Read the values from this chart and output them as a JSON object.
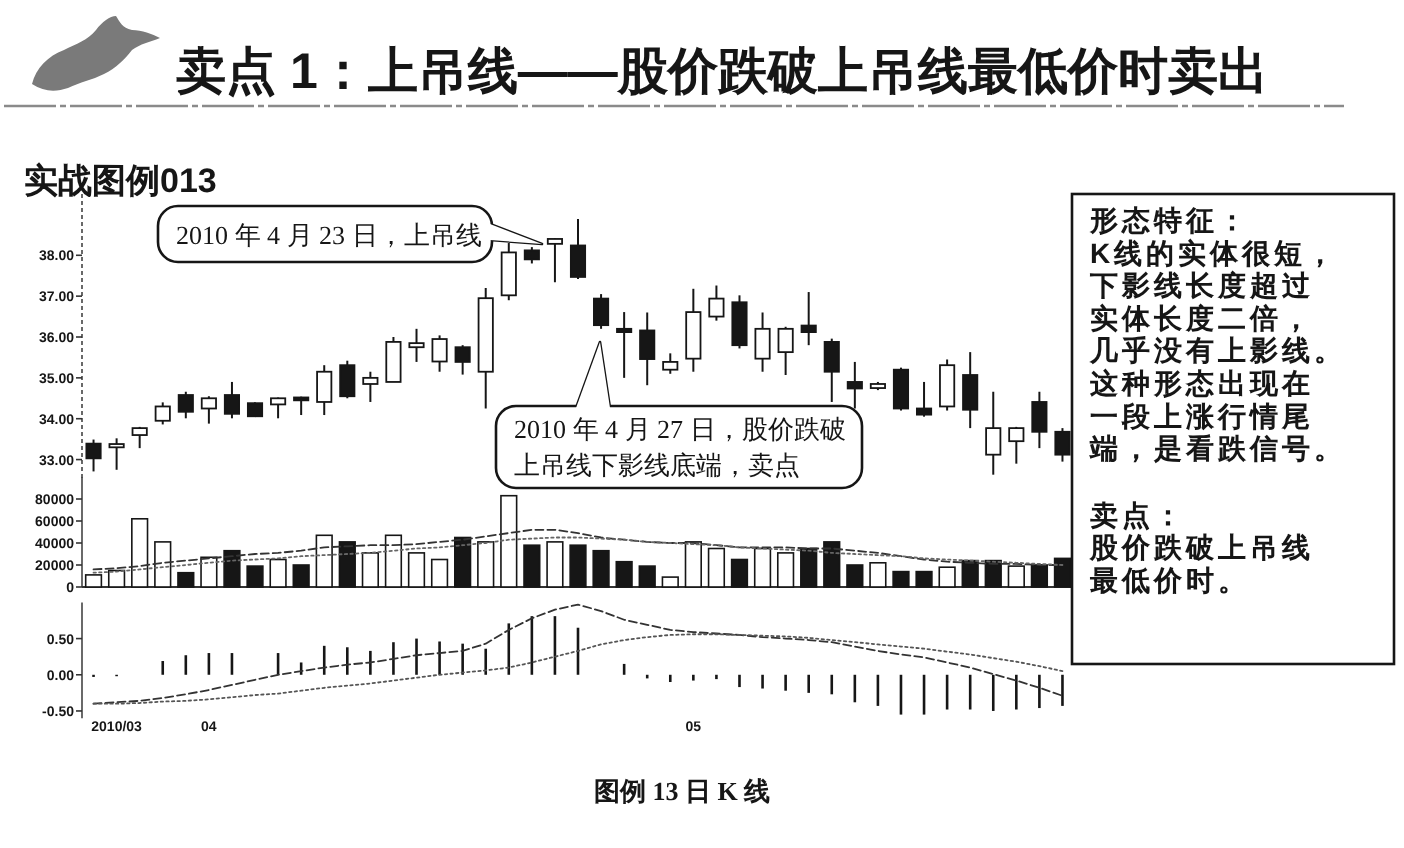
{
  "chart_data": [
    {
      "type": "candlestick",
      "title": "卖点 1：上吊线——股价跌破上吊线最低价时卖出",
      "subtitle": "实战图例013",
      "categories": [
        null,
        null,
        null,
        null,
        null,
        null,
        null,
        null,
        null,
        null,
        null,
        null,
        null,
        null,
        null,
        null,
        null,
        null,
        null,
        null,
        null,
        null,
        null,
        null,
        null,
        null,
        null,
        null,
        null,
        null,
        null,
        null,
        null,
        null,
        null,
        null,
        null,
        null,
        null,
        null,
        null,
        null,
        null
      ],
      "ohlc": [
        [
          33.39,
          33.49,
          32.71,
          33.03
        ],
        [
          33.3,
          33.52,
          32.75,
          33.38
        ],
        [
          33.6,
          33.8,
          33.28,
          33.77
        ],
        [
          33.95,
          34.4,
          33.86,
          34.3
        ],
        [
          34.58,
          34.66,
          34.01,
          34.17
        ],
        [
          34.25,
          34.55,
          33.88,
          34.5
        ],
        [
          34.58,
          34.9,
          34.01,
          34.12
        ],
        [
          34.38,
          34.4,
          34.04,
          34.06
        ],
        [
          34.35,
          34.52,
          34.01,
          34.5
        ],
        [
          34.52,
          34.54,
          34.09,
          34.45
        ],
        [
          34.41,
          35.31,
          34.09,
          35.15
        ],
        [
          35.31,
          35.42,
          34.5,
          34.55
        ],
        [
          34.85,
          35.15,
          34.41,
          35.0
        ],
        [
          34.9,
          36.0,
          34.9,
          35.88
        ],
        [
          35.75,
          36.2,
          35.39,
          35.85
        ],
        [
          35.4,
          36.04,
          35.15,
          35.95
        ],
        [
          35.75,
          35.8,
          35.08,
          35.39
        ],
        [
          35.15,
          37.2,
          34.25,
          36.95
        ],
        [
          37.02,
          38.3,
          36.9,
          38.07
        ],
        [
          38.12,
          38.2,
          37.8,
          37.9
        ],
        [
          38.28,
          38.42,
          37.34,
          38.4
        ],
        [
          38.24,
          38.89,
          37.42,
          37.47
        ],
        [
          36.94,
          37.05,
          36.2,
          36.29
        ],
        [
          36.2,
          36.61,
          35.0,
          36.12
        ],
        [
          36.16,
          36.6,
          34.82,
          35.46
        ],
        [
          35.2,
          35.6,
          35.1,
          35.39
        ],
        [
          35.47,
          37.18,
          35.15,
          36.61
        ],
        [
          36.5,
          37.26,
          36.4,
          36.94
        ],
        [
          36.85,
          37.02,
          35.72,
          35.8
        ],
        [
          35.47,
          36.6,
          35.15,
          36.2
        ],
        [
          35.63,
          36.25,
          35.07,
          36.2
        ],
        [
          36.28,
          37.1,
          35.8,
          36.12
        ],
        [
          35.88,
          35.96,
          34.41,
          35.15
        ],
        [
          34.9,
          35.39,
          34.25,
          34.74
        ],
        [
          34.75,
          34.9,
          34.7,
          34.85
        ],
        [
          35.2,
          35.25,
          34.2,
          34.25
        ],
        [
          34.25,
          34.9,
          34.05,
          34.1
        ],
        [
          34.3,
          35.45,
          34.2,
          35.31
        ],
        [
          35.07,
          35.63,
          33.77,
          34.22
        ],
        [
          33.12,
          34.66,
          32.63,
          33.77
        ],
        [
          33.45,
          33.8,
          32.9,
          33.77
        ],
        [
          34.41,
          34.66,
          33.28,
          33.68
        ],
        [
          33.68,
          33.77,
          32.95,
          33.12
        ]
      ],
      "ylim": [
        32.5,
        39.5
      ],
      "yticks": [
        {
          "value": 33,
          "label": "33.00"
        },
        {
          "value": 34,
          "label": "34.00"
        },
        {
          "value": 35,
          "label": "35.00"
        },
        {
          "value": 36,
          "label": "36.00"
        },
        {
          "value": 37,
          "label": "37.00"
        },
        {
          "value": 38,
          "label": "38.00"
        }
      ],
      "tick_labels": "y",
      "annotations": [
        "2010 年 4 月 23 日，上吊线",
        "2010 年 4 月 27 日，股价跌破上吊线下影线底端，卖点",
        "图例 13  日 K 线"
      ]
    },
    {
      "type": "bar",
      "categories": [
        null,
        null,
        null,
        null,
        null,
        null,
        null,
        null,
        null,
        null,
        null,
        null,
        null,
        null,
        null,
        null,
        null,
        null,
        null,
        null,
        null,
        null,
        null,
        null,
        null,
        null,
        null,
        null,
        null,
        null,
        null,
        null,
        null,
        null,
        null,
        null,
        null,
        null,
        null,
        null,
        null,
        null,
        null
      ],
      "series": [
        {
          "type": "bar",
          "values": [
            11000,
            15000,
            62000,
            41000,
            13000,
            27000,
            33000,
            19000,
            25000,
            20000,
            47000,
            41000,
            31000,
            47000,
            31000,
            25000,
            45000,
            41000,
            83000,
            38000,
            41000,
            38000,
            33000,
            23000,
            19000,
            9000,
            41000,
            35000,
            25000,
            35000,
            31000,
            35000,
            41000,
            20000,
            22000,
            14000,
            14000,
            18000,
            24000,
            24000,
            19000,
            20000,
            26000
          ],
          "colors": [
            "#ffffff",
            "#ffffff",
            "#ffffff",
            "#ffffff",
            "#161616",
            "#ffffff",
            "#161616",
            "#161616",
            "#ffffff",
            "#161616",
            "#ffffff",
            "#161616",
            "#ffffff",
            "#ffffff",
            "#ffffff",
            "#ffffff",
            "#161616",
            "#ffffff",
            "#ffffff",
            "#161616",
            "#ffffff",
            "#161616",
            "#161616",
            "#161616",
            "#161616",
            "#ffffff",
            "#ffffff",
            "#ffffff",
            "#161616",
            "#ffffff",
            "#ffffff",
            "#161616",
            "#161616",
            "#161616",
            "#ffffff",
            "#161616",
            "#161616",
            "#ffffff",
            "#161616",
            "#161616",
            "#ffffff",
            "#161616",
            "#161616"
          ]
        },
        {
          "type": "line",
          "color": "#333333",
          "line_style": "dashed",
          "values": [
            16000,
            17000,
            19000,
            22000,
            24000,
            26000,
            28000,
            30000,
            31000,
            33000,
            36000,
            37000,
            38000,
            38000,
            39000,
            41000,
            43000,
            46000,
            49000,
            52000,
            52000,
            49000,
            45000,
            43000,
            41000,
            40000,
            40000,
            38000,
            36000,
            36000,
            36000,
            35000,
            35000,
            33000,
            31000,
            28000,
            25000,
            23000,
            22000,
            21000,
            21000,
            20000,
            20000
          ]
        },
        {
          "type": "line",
          "color": "#666666",
          "line_style": "dotted",
          "values": [
            13000,
            14000,
            16000,
            18000,
            20000,
            22000,
            24000,
            25000,
            26000,
            28000,
            29000,
            30000,
            31000,
            33000,
            35000,
            36000,
            38000,
            40000,
            43000,
            44000,
            45000,
            45000,
            44000,
            43000,
            41000,
            40000,
            39000,
            38000,
            36000,
            35000,
            34000,
            33000,
            31000,
            30000,
            29000,
            28000,
            26000,
            25000,
            24000,
            23000,
            22000,
            21000,
            20000
          ]
        }
      ],
      "ylim": [
        0,
        100000
      ],
      "yticks": [
        0,
        20000,
        40000,
        60000,
        80000
      ],
      "tick_labels": "y"
    },
    {
      "type": "bar",
      "categories": [
        null,
        "2010/03",
        null,
        null,
        null,
        "04",
        null,
        null,
        null,
        null,
        null,
        null,
        null,
        null,
        null,
        null,
        null,
        null,
        null,
        null,
        null,
        null,
        null,
        null,
        null,
        null,
        "05",
        null,
        null,
        null,
        null,
        null,
        null,
        null,
        null,
        null,
        null,
        null,
        null,
        null,
        null,
        null,
        null
      ],
      "series": [
        {
          "type": "bar",
          "color": "#161616",
          "values": [
            -0.03,
            -0.02,
            null,
            0.19,
            0.27,
            0.3,
            0.3,
            null,
            0.3,
            0.17,
            0.4,
            0.38,
            0.33,
            0.45,
            0.5,
            0.46,
            0.43,
            0.36,
            0.71,
            0.81,
            0.81,
            0.65,
            null,
            0.15,
            -0.05,
            -0.1,
            -0.08,
            -0.06,
            -0.17,
            -0.19,
            -0.22,
            -0.25,
            -0.27,
            -0.38,
            -0.43,
            -0.55,
            -0.55,
            -0.48,
            -0.48,
            -0.5,
            -0.48,
            -0.46,
            -0.43
          ]
        },
        {
          "type": "line",
          "color": "#333333",
          "line_style": "dashed",
          "values": [
            -0.4,
            -0.38,
            -0.36,
            -0.32,
            -0.27,
            -0.21,
            -0.14,
            -0.07,
            0.0,
            0.05,
            0.1,
            0.14,
            0.17,
            0.22,
            0.27,
            0.3,
            0.33,
            0.43,
            0.62,
            0.78,
            0.9,
            0.97,
            0.88,
            0.76,
            0.69,
            0.62,
            0.59,
            0.57,
            0.55,
            0.52,
            0.5,
            0.48,
            0.45,
            0.39,
            0.33,
            0.28,
            0.24,
            0.17,
            0.1,
            0.01,
            -0.08,
            -0.18,
            -0.29
          ]
        },
        {
          "type": "line",
          "color": "#555555",
          "line_style": "dotted",
          "values": [
            -0.4,
            -0.4,
            -0.39,
            -0.37,
            -0.36,
            -0.34,
            -0.31,
            -0.28,
            -0.26,
            -0.22,
            -0.18,
            -0.15,
            -0.12,
            -0.08,
            -0.04,
            0.0,
            0.03,
            0.06,
            0.1,
            0.17,
            0.25,
            0.33,
            0.42,
            0.48,
            0.52,
            0.55,
            0.56,
            0.56,
            0.55,
            0.54,
            0.53,
            0.51,
            0.48,
            0.45,
            0.42,
            0.39,
            0.36,
            0.32,
            0.28,
            0.23,
            0.18,
            0.12,
            0.05
          ]
        }
      ],
      "ylim": [
        -0.6,
        1.0
      ],
      "yticks": [
        {
          "value": -0.5,
          "label": "-0.50"
        },
        {
          "value": 0,
          "label": "0.00"
        },
        {
          "value": 0.5,
          "label": "0.50"
        }
      ]
    },
    {
      "type": "other",
      "annotations": [
        "形态特征：",
        "K线的实体很短，",
        "下影线长度超过",
        "实体长度二倍，",
        "几乎没有上影线。",
        "这种形态出现在",
        "一段上涨行情尾",
        "端，是看跌信号。",
        "卖点：",
        "股价跌破上吊线",
        "最低价时。"
      ]
    }
  ]
}
